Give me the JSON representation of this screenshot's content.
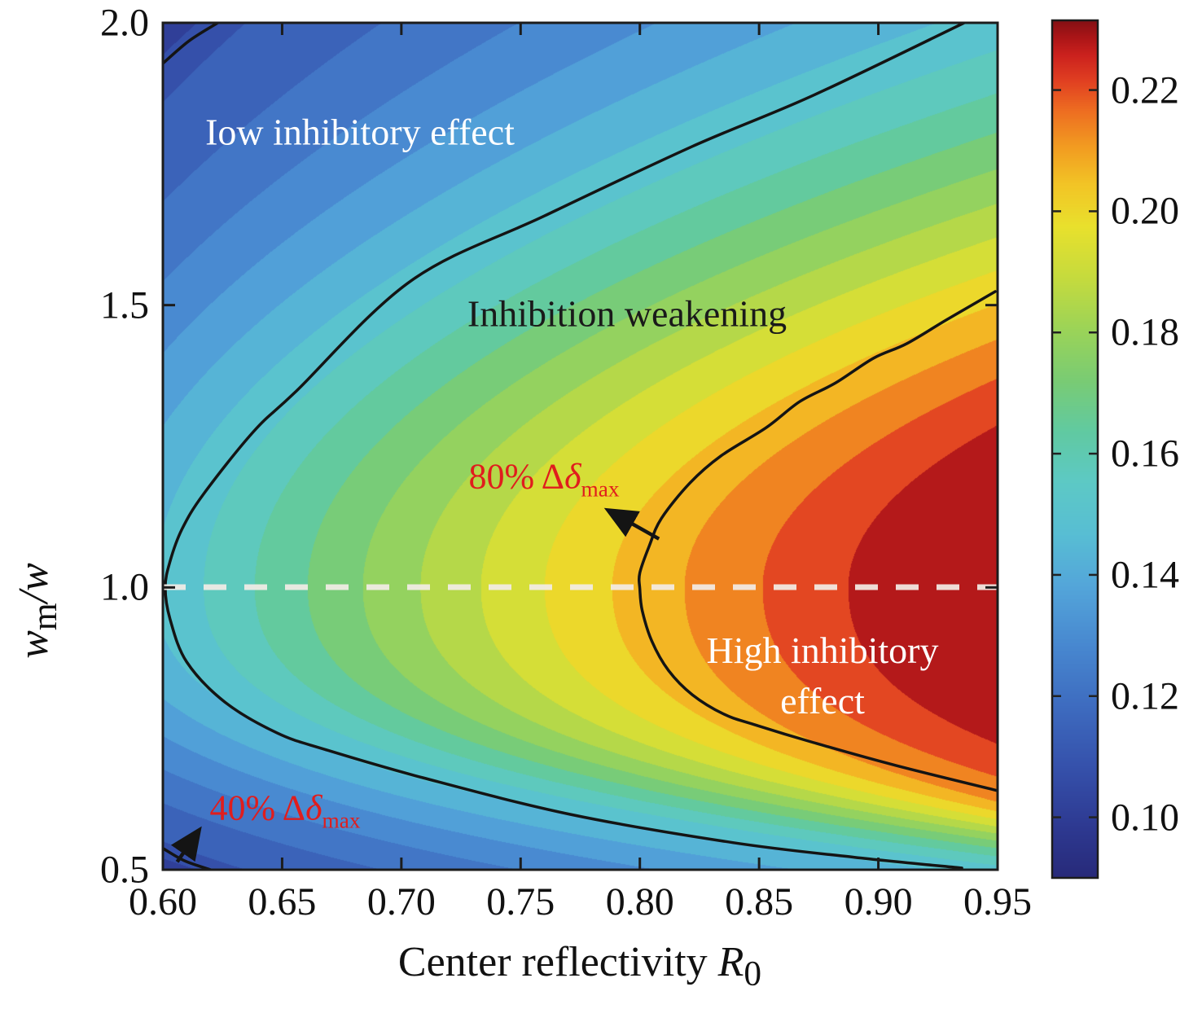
{
  "figure": {
    "x_axis": {
      "label_prefix": "Center reflectivity ",
      "label_symbol": "R",
      "label_subscript": "0",
      "ticks": [
        "0.60",
        "0.65",
        "0.70",
        "0.75",
        "0.80",
        "0.85",
        "0.90",
        "0.95"
      ]
    },
    "y_axis": {
      "label_symbol": "w",
      "label_subscript": "m",
      "label_suffix": "/w",
      "ticks": [
        "2.0",
        "1.5",
        "1.0",
        "0.5"
      ]
    },
    "colorbar": {
      "ticks": [
        "0.22",
        "0.20",
        "0.18",
        "0.16",
        "0.14",
        "0.12",
        "0.10"
      ]
    },
    "annotations": {
      "low_region": "Iow inhibitory effect",
      "mid_region": "Inhibition weakening",
      "high_region_line1": "High inhibitory",
      "high_region_line2": "effect",
      "c80_prefix": "80% Δ",
      "c80_symbol": "δ",
      "c80_subscript": "max",
      "c40_prefix": "40% Δ",
      "c40_symbol": "δ",
      "c40_subscript": "max"
    },
    "colors": {
      "annotation_red": "#e01d1d",
      "annotation_white": "#ffffff",
      "annotation_black": "#1a1a1a",
      "contour_line": "#141414",
      "dashed_line": "#f3ece6",
      "axis": "#1c1c1c"
    }
  },
  "chart_data": {
    "type": "heatmap",
    "subtype": "filled-contour",
    "xlabel": "Center reflectivity R0",
    "ylabel": "wm/w",
    "x_range": [
      0.6,
      0.95
    ],
    "y_range": [
      0.5,
      2.0
    ],
    "value_range": [
      0.09,
      0.2315
    ],
    "colorbar_tick_values": [
      0.22,
      0.2,
      0.18,
      0.16,
      0.14,
      0.12,
      0.1
    ],
    "n_bands": 20,
    "grid": false,
    "legend": "colorbar-right",
    "peak": {
      "x": 0.95,
      "y": 1.0,
      "value": 0.23
    },
    "minima": [
      {
        "x": 0.6,
        "y": 2.0,
        "value": 0.095
      },
      {
        "x": 0.6,
        "y": 0.5,
        "value": 0.095
      }
    ],
    "dashed_reference_line": {
      "y": 1.0,
      "style": "dashed",
      "color": "#f3ece6"
    },
    "regions": [
      {
        "label": "Iow inhibitory effect",
        "at": [
          0.68,
          1.8
        ],
        "approx_value": 0.11
      },
      {
        "label": "Inhibition weakening",
        "at": [
          0.79,
          1.48
        ],
        "approx_value": 0.17
      },
      {
        "label": "High inhibitory effect",
        "at": [
          0.88,
          0.85
        ],
        "approx_value": 0.22
      }
    ],
    "contours": [
      {
        "id": "c40",
        "label": "40% Δδmax",
        "level": 0.098,
        "branches": [
          [
            [
              0.6,
              1.928
            ],
            [
              0.611,
              1.968
            ],
            [
              0.623,
              2.0
            ]
          ],
          [
            [
              0.6,
              0.538
            ],
            [
              0.609,
              0.516
            ],
            [
              0.62,
              0.5
            ]
          ]
        ]
      },
      {
        "id": "cmid",
        "label": "",
        "level": 0.148,
        "branches": [
          [
            [
              0.936,
              2.0
            ],
            [
              0.873,
              1.872
            ],
            [
              0.822,
              1.781
            ],
            [
              0.76,
              1.658
            ],
            [
              0.704,
              1.543
            ],
            [
              0.656,
              1.348
            ],
            [
              0.638,
              1.276
            ],
            [
              0.617,
              1.165
            ],
            [
              0.608,
              1.103
            ],
            [
              0.603,
              1.046
            ],
            [
              0.601,
              1.0
            ],
            [
              0.603,
              0.944
            ],
            [
              0.61,
              0.868
            ],
            [
              0.626,
              0.797
            ],
            [
              0.648,
              0.742
            ],
            [
              0.668,
              0.713
            ],
            [
              0.709,
              0.663
            ],
            [
              0.771,
              0.598
            ],
            [
              0.839,
              0.548
            ],
            [
              0.89,
              0.522
            ],
            [
              0.935,
              0.503
            ]
          ]
        ]
      },
      {
        "id": "c80",
        "label": "80% Δδmax",
        "level": 0.206,
        "branches": [
          [
            [
              0.949,
              1.524
            ],
            [
              0.929,
              1.475
            ],
            [
              0.912,
              1.432
            ],
            [
              0.898,
              1.406
            ],
            [
              0.882,
              1.362
            ],
            [
              0.867,
              1.329
            ],
            [
              0.853,
              1.283
            ],
            [
              0.834,
              1.233
            ],
            [
              0.821,
              1.185
            ],
            [
              0.809,
              1.122
            ],
            [
              0.804,
              1.074
            ],
            [
              0.8,
              1.026
            ],
            [
              0.8,
              0.997
            ],
            [
              0.801,
              0.959
            ],
            [
              0.805,
              0.905
            ],
            [
              0.812,
              0.853
            ],
            [
              0.822,
              0.81
            ],
            [
              0.835,
              0.776
            ],
            [
              0.848,
              0.757
            ],
            [
              0.873,
              0.725
            ],
            [
              0.907,
              0.685
            ],
            [
              0.95,
              0.64
            ]
          ]
        ]
      }
    ],
    "arrows": [
      {
        "for": "c80",
        "from": [
          0.808,
          1.086
        ],
        "to": [
          0.787,
          1.136
        ]
      },
      {
        "for": "c40",
        "from": [
          0.606,
          0.514
        ],
        "to": [
          0.615,
          0.569
        ]
      }
    ],
    "colormap": [
      {
        "t": 0.0,
        "c": "#282a7a"
      },
      {
        "t": 0.06,
        "c": "#2e3a92"
      },
      {
        "t": 0.13,
        "c": "#3652ac"
      },
      {
        "t": 0.2,
        "c": "#3e6cc0"
      },
      {
        "t": 0.27,
        "c": "#4888d0"
      },
      {
        "t": 0.34,
        "c": "#54a6da"
      },
      {
        "t": 0.4,
        "c": "#58bed4"
      },
      {
        "t": 0.46,
        "c": "#5dc9c6"
      },
      {
        "t": 0.52,
        "c": "#61caa2"
      },
      {
        "t": 0.58,
        "c": "#7acc74"
      },
      {
        "t": 0.64,
        "c": "#9cd458"
      },
      {
        "t": 0.7,
        "c": "#c6db3e"
      },
      {
        "t": 0.76,
        "c": "#e9e12d"
      },
      {
        "t": 0.81,
        "c": "#f3c426"
      },
      {
        "t": 0.855,
        "c": "#f29a21"
      },
      {
        "t": 0.895,
        "c": "#ee6e21"
      },
      {
        "t": 0.93,
        "c": "#e14022"
      },
      {
        "t": 0.96,
        "c": "#cc221e"
      },
      {
        "t": 0.98,
        "c": "#ac1618"
      },
      {
        "t": 1.0,
        "c": "#861014"
      }
    ]
  }
}
